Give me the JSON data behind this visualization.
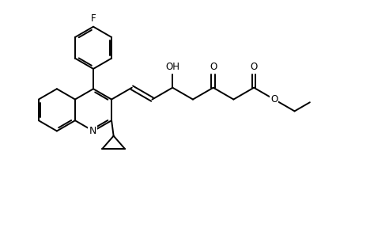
{
  "bg_color": "#ffffff",
  "line_color": "#000000",
  "line_width": 1.4,
  "font_size": 8.5,
  "fig_width": 4.92,
  "fig_height": 2.88,
  "xlim": [
    0,
    9.5
  ],
  "ylim": [
    0,
    5.5
  ]
}
